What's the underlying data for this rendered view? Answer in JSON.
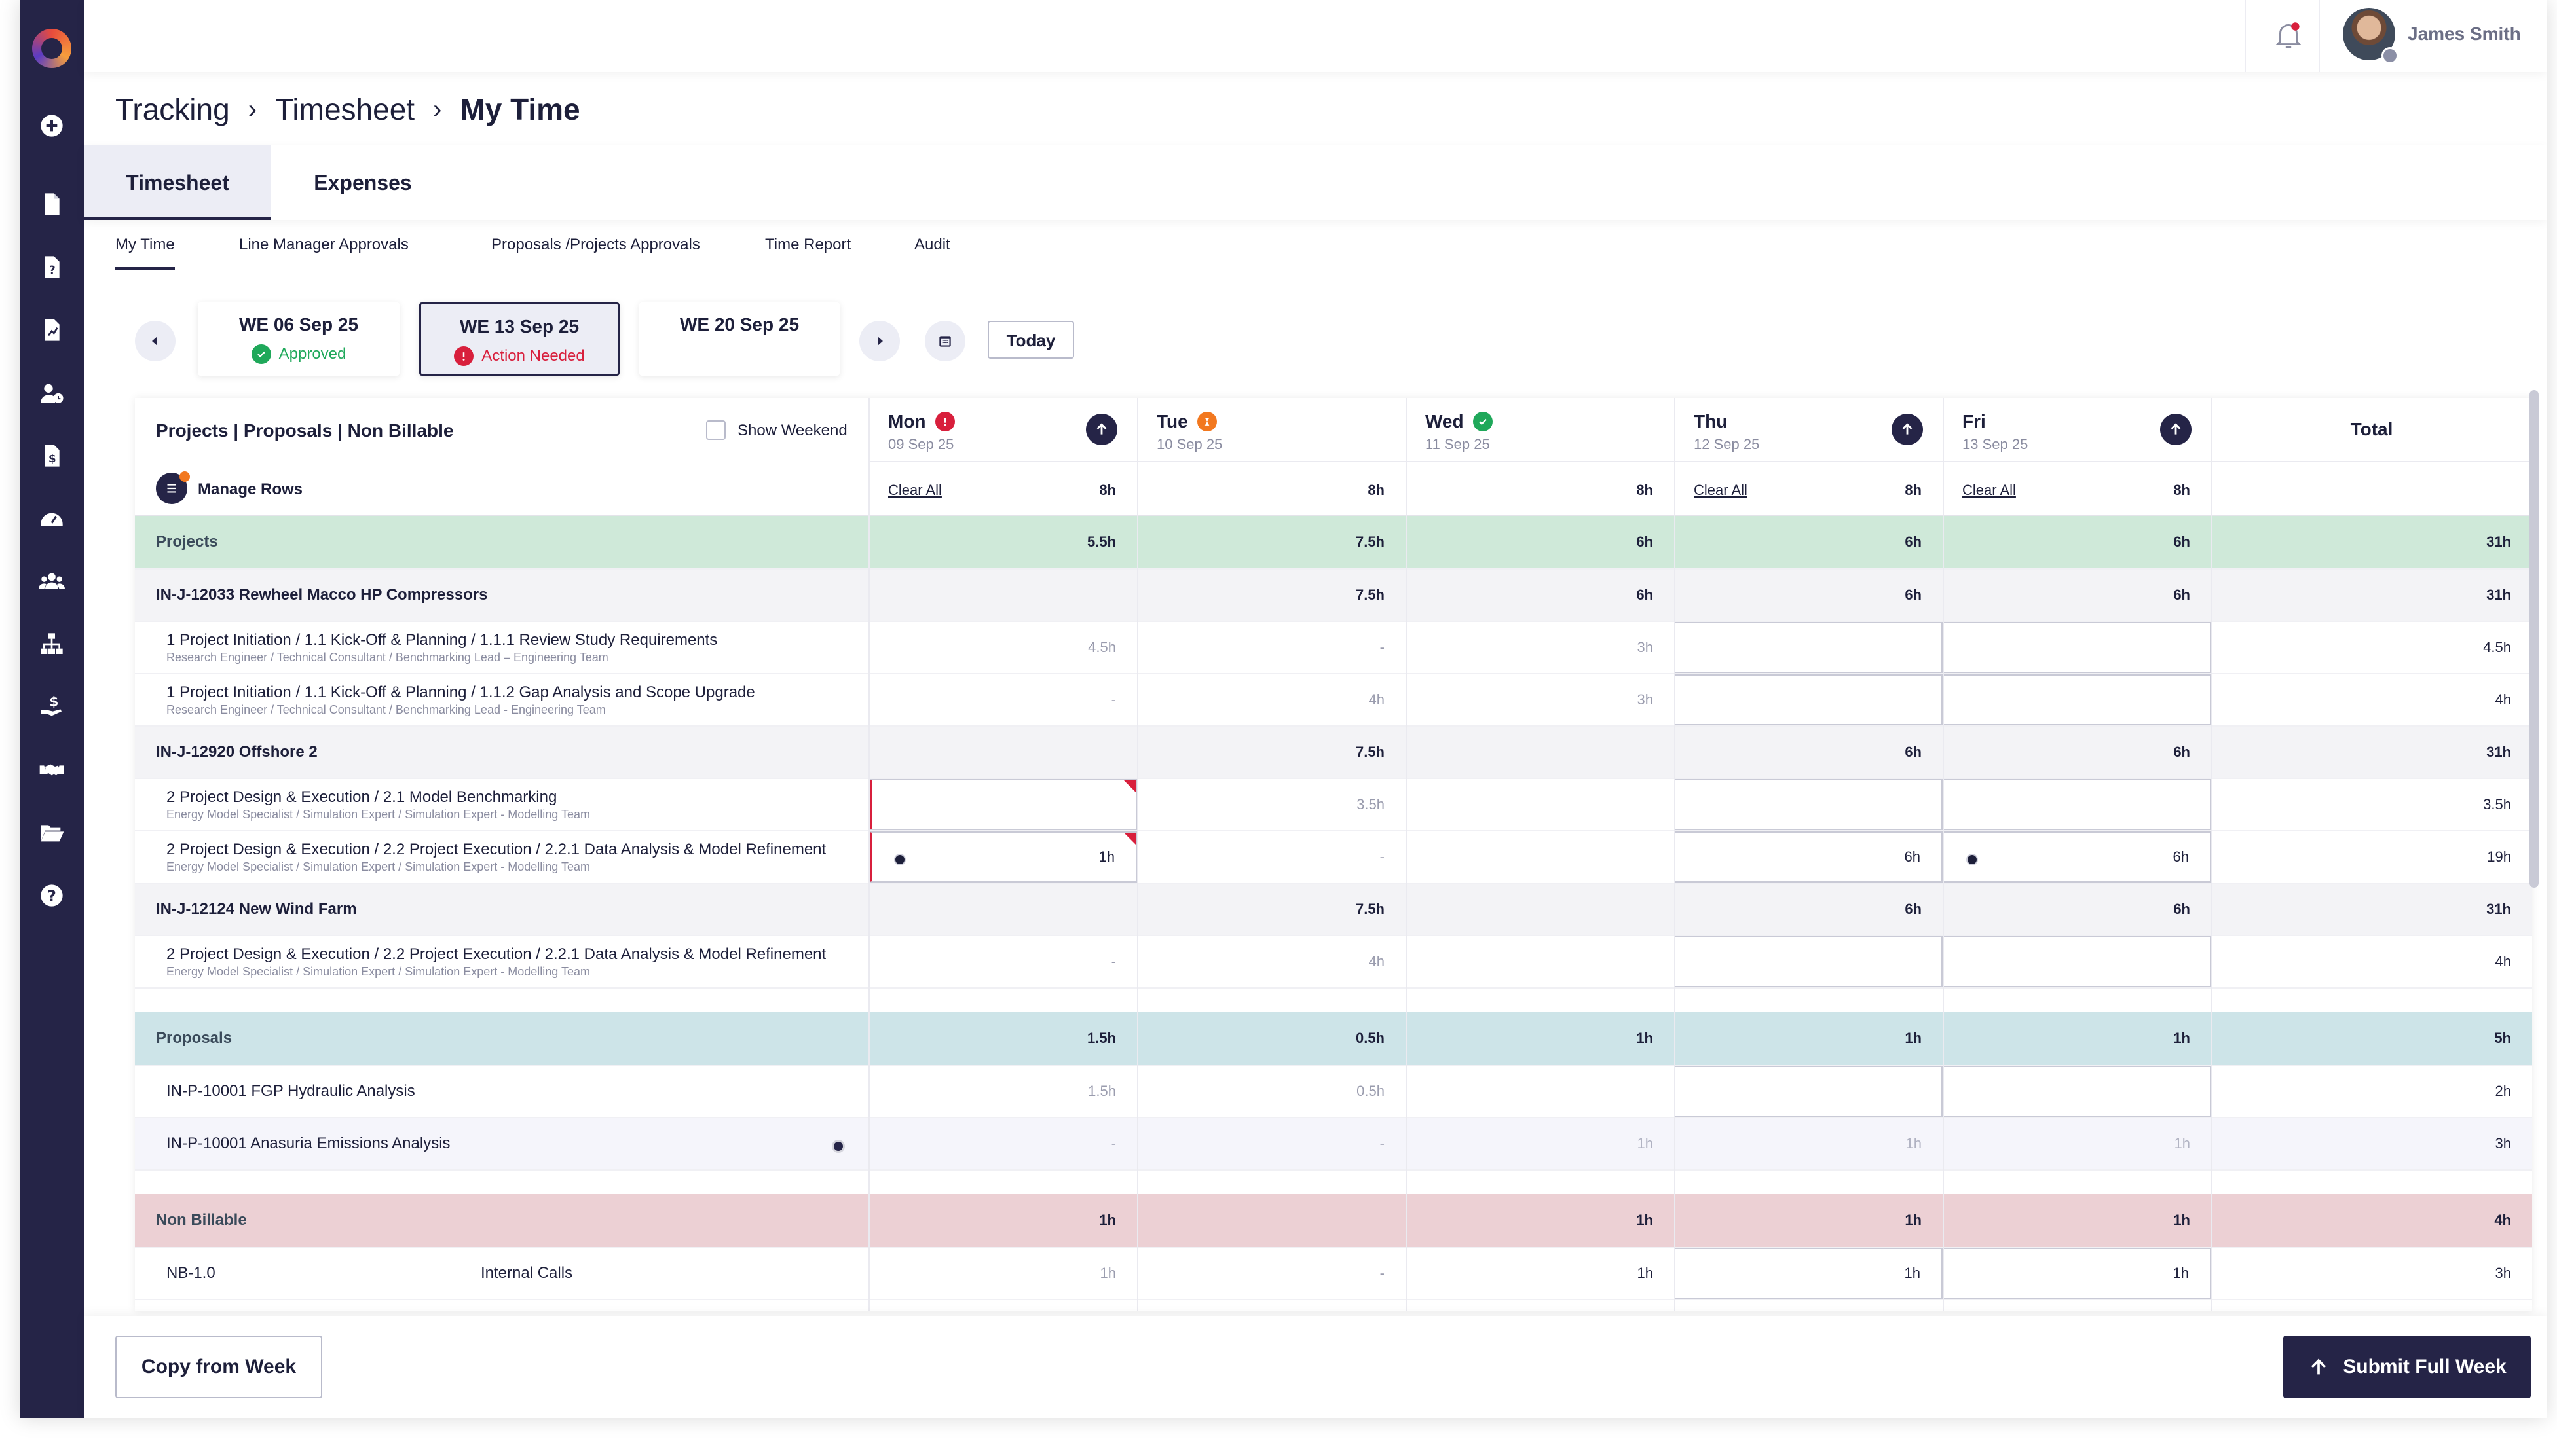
{
  "user": {
    "name": "James Smith"
  },
  "breadcrumb": [
    "Tracking",
    "Timesheet",
    "My Time"
  ],
  "tabs": [
    "Timesheet",
    "Expenses"
  ],
  "subtabs": [
    "My Time",
    "Line Manager Approvals",
    "Proposals /Projects Approvals",
    "Time Report",
    "Audit"
  ],
  "weeks": [
    {
      "title": "WE 06 Sep 25",
      "status": "Approved",
      "status_color": "#1fa85a"
    },
    {
      "title": "WE 13 Sep 25",
      "status": "Action Needed",
      "status_color": "#d81f3c"
    },
    {
      "title": "WE 20 Sep 25",
      "status": "",
      "status_color": ""
    }
  ],
  "today_label": "Today",
  "grid": {
    "header_title": "Projects | Proposals | Non Billable",
    "show_weekend": "Show Weekend",
    "manage_rows": "Manage Rows",
    "total_label": "Total",
    "clear_all": "Clear All",
    "days": [
      {
        "name": "Mon",
        "date": "09 Sep 25",
        "hours": "8h",
        "status": "error",
        "clear": true,
        "upload": true
      },
      {
        "name": "Tue",
        "date": "10 Sep 25",
        "hours": "8h",
        "status": "pending",
        "clear": false,
        "upload": false
      },
      {
        "name": "Wed",
        "date": "11 Sep 25",
        "hours": "8h",
        "status": "ok",
        "clear": false,
        "upload": false
      },
      {
        "name": "Thu",
        "date": "12 Sep 25",
        "hours": "8h",
        "status": "",
        "clear": true,
        "upload": true
      },
      {
        "name": "Fri",
        "date": "13 Sep 25",
        "hours": "8h",
        "status": "",
        "clear": true,
        "upload": true
      }
    ]
  },
  "footer": {
    "copy_label": "Copy from Week",
    "submit_label": "Submit Full Week"
  },
  "colors": {
    "primary": "#252447",
    "projects": "#cfe9d9",
    "proposals": "#cde4e8",
    "nonbillable": "#ecd0d4"
  }
}
